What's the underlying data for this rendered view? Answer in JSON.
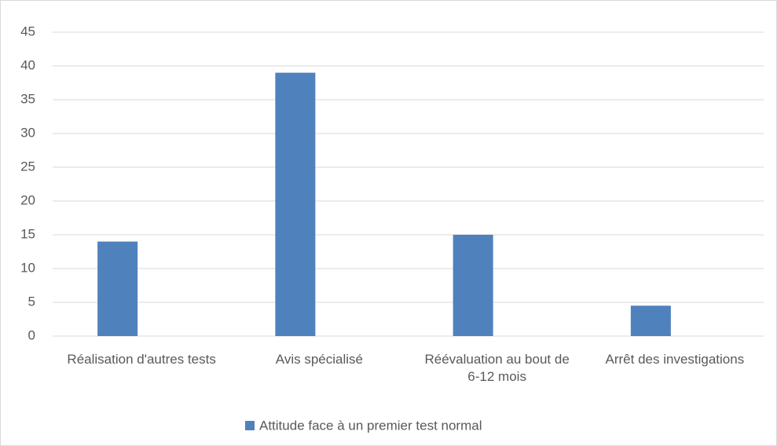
{
  "chart_data": {
    "type": "bar",
    "categories": [
      "Réalisation d'autres tests",
      "Avis spécialisé",
      "Réévaluation au bout de 6-12 mois",
      "Arrêt des investigations"
    ],
    "series": [
      {
        "name": "Attitude face à un premier test normal",
        "color": "#4f81bd",
        "values": [
          14,
          39,
          15,
          4.5
        ]
      }
    ],
    "ylim": [
      0,
      45
    ],
    "yticks": [
      0,
      5,
      10,
      15,
      20,
      25,
      30,
      35,
      40,
      45
    ],
    "grid": true,
    "legend": "bottom"
  }
}
